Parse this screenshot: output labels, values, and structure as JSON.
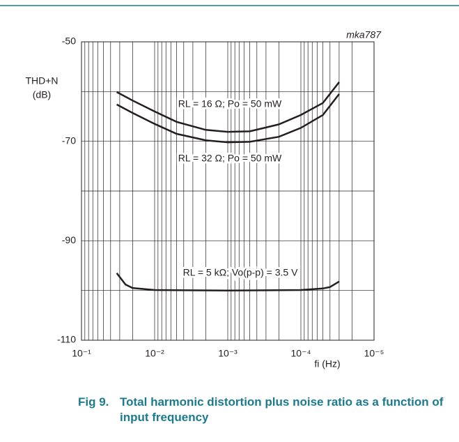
{
  "chart_data": {
    "type": "line",
    "annotation_id": "mka787",
    "ylabel": [
      "THD+N",
      "(dB)"
    ],
    "xlabel": "fi (Hz)",
    "xscale": "log",
    "grid": true,
    "xlim": [
      0.1,
      1e-05
    ],
    "ylim": [
      -110,
      -50
    ],
    "xticks": [
      {
        "value": 0.1,
        "label": "10⁻¹"
      },
      {
        "value": 0.01,
        "label": "10⁻²"
      },
      {
        "value": 0.001,
        "label": "10⁻³"
      },
      {
        "value": 0.0001,
        "label": "10⁻⁴"
      },
      {
        "value": 1e-05,
        "label": "10⁻⁵"
      }
    ],
    "minor_xticks": [
      0.09,
      0.08,
      0.07,
      0.06,
      0.05,
      0.04,
      0.03,
      0.02,
      0.009,
      0.008,
      0.007,
      0.006,
      0.005,
      0.004,
      0.003,
      0.002,
      0.0009,
      0.0008,
      0.0007,
      0.0006,
      0.0005,
      0.0004,
      0.0003,
      0.0002,
      9e-05,
      8e-05,
      7e-05,
      6e-05,
      5e-05,
      4e-05,
      3e-05,
      2e-05
    ],
    "yticks": [
      -50,
      -70,
      -90,
      -110
    ],
    "minor_yticks": [
      -60,
      -80,
      -100
    ],
    "series": [
      {
        "name": "RL = 16 Ω;  Po = 50 mW",
        "color": "#231f20",
        "x": [
          0.033,
          0.02,
          0.01,
          0.005,
          0.002,
          0.001,
          0.0005,
          0.0002,
          0.0001,
          5e-05,
          3e-05
        ],
        "values": [
          -60.1,
          -61.8,
          -64.0,
          -66.1,
          -67.7,
          -68.1,
          -68.0,
          -66.6,
          -64.7,
          -62.3,
          -58.1
        ]
      },
      {
        "name": "RL = 32 Ω;  Po = 50 mW",
        "color": "#231f20",
        "x": [
          0.033,
          0.02,
          0.01,
          0.005,
          0.002,
          0.001,
          0.0005,
          0.0002,
          0.0001,
          5e-05,
          3e-05
        ],
        "values": [
          -62.6,
          -64.3,
          -66.5,
          -68.5,
          -69.8,
          -70.2,
          -70.1,
          -69.1,
          -67.3,
          -64.7,
          -60.5
        ]
      },
      {
        "name": "RL = 5 kΩ;  Vo(p-p) = 3.5 V",
        "color": "#231f20",
        "x": [
          0.033,
          0.025,
          0.02,
          0.01,
          0.001,
          0.0001,
          5e-05,
          4e-05,
          3e-05
        ],
        "values": [
          -96.5,
          -98.8,
          -99.5,
          -99.9,
          -100,
          -99.9,
          -99.6,
          -99.3,
          -98.2
        ]
      }
    ],
    "caption_label": "Fig 9.",
    "caption": "Total harmonic distortion plus noise ratio as a function of input frequency"
  }
}
